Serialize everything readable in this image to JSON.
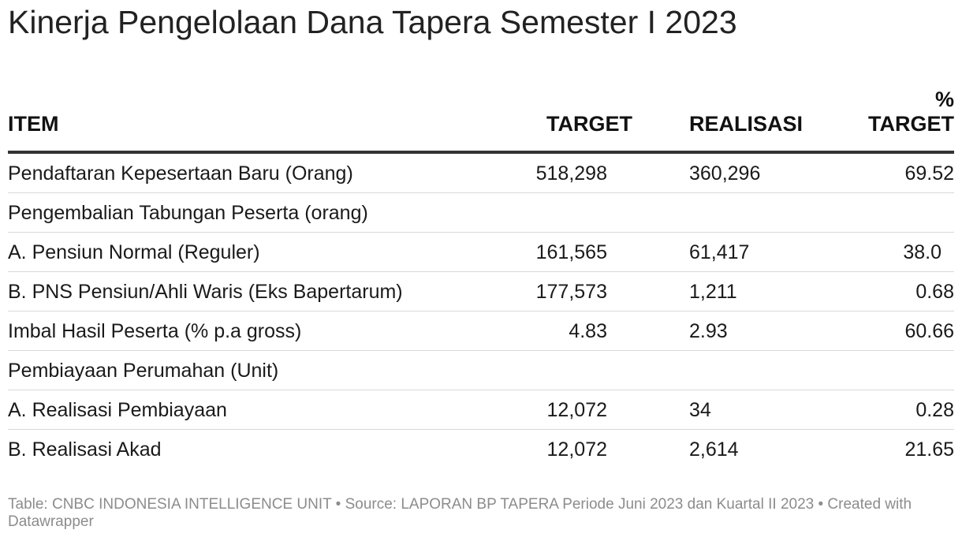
{
  "title": "Kinerja Pengelolaan Dana Tapera Semester I 2023",
  "chart_data": {
    "type": "table",
    "title": "Kinerja Pengelolaan Dana Tapera Semester I 2023",
    "columns": [
      "ITEM",
      "TARGET",
      "REALISASI",
      "% TARGET"
    ],
    "rows": [
      {
        "item": "Pendaftaran Kepesertaan Baru (Orang)",
        "target": "518,298",
        "realisasi": "360,296",
        "pct": "69.52"
      },
      {
        "item": "Pengembalian Tabungan Peserta (orang)",
        "target": "",
        "realisasi": "",
        "pct": ""
      },
      {
        "item": "A. Pensiun Normal (Reguler)",
        "target": "161,565",
        "realisasi": "61,417",
        "pct": "38.0"
      },
      {
        "item": "B. PNS Pensiun/Ahli Waris (Eks Bapertarum)",
        "target": "177,573",
        "realisasi": "1,211",
        "pct": "0.68"
      },
      {
        "item": "Imbal Hasil Peserta (% p.a gross)",
        "target": "4.83",
        "realisasi": "2.93",
        "pct": "60.66"
      },
      {
        "item": "Pembiayaan Perumahan (Unit)",
        "target": "",
        "realisasi": "",
        "pct": ""
      },
      {
        "item": "A. Realisasi Pembiayaan",
        "target": "12,072",
        "realisasi": "34",
        "pct": "0.28"
      },
      {
        "item": "B. Realisasi Akad",
        "target": "12,072",
        "realisasi": "2,614",
        "pct": "21.65"
      }
    ]
  },
  "footer": "Table: CNBC INDONESIA INTELLIGENCE UNIT • Source: LAPORAN BP TAPERA Periode Juni 2023 dan Kuartal II 2023 • Created with Datawrapper",
  "colors": {
    "title": "#222222",
    "text": "#1a1a1a",
    "header_rule": "#333333",
    "row_rule": "#d9d9d9",
    "footer": "#8c8c8c"
  }
}
